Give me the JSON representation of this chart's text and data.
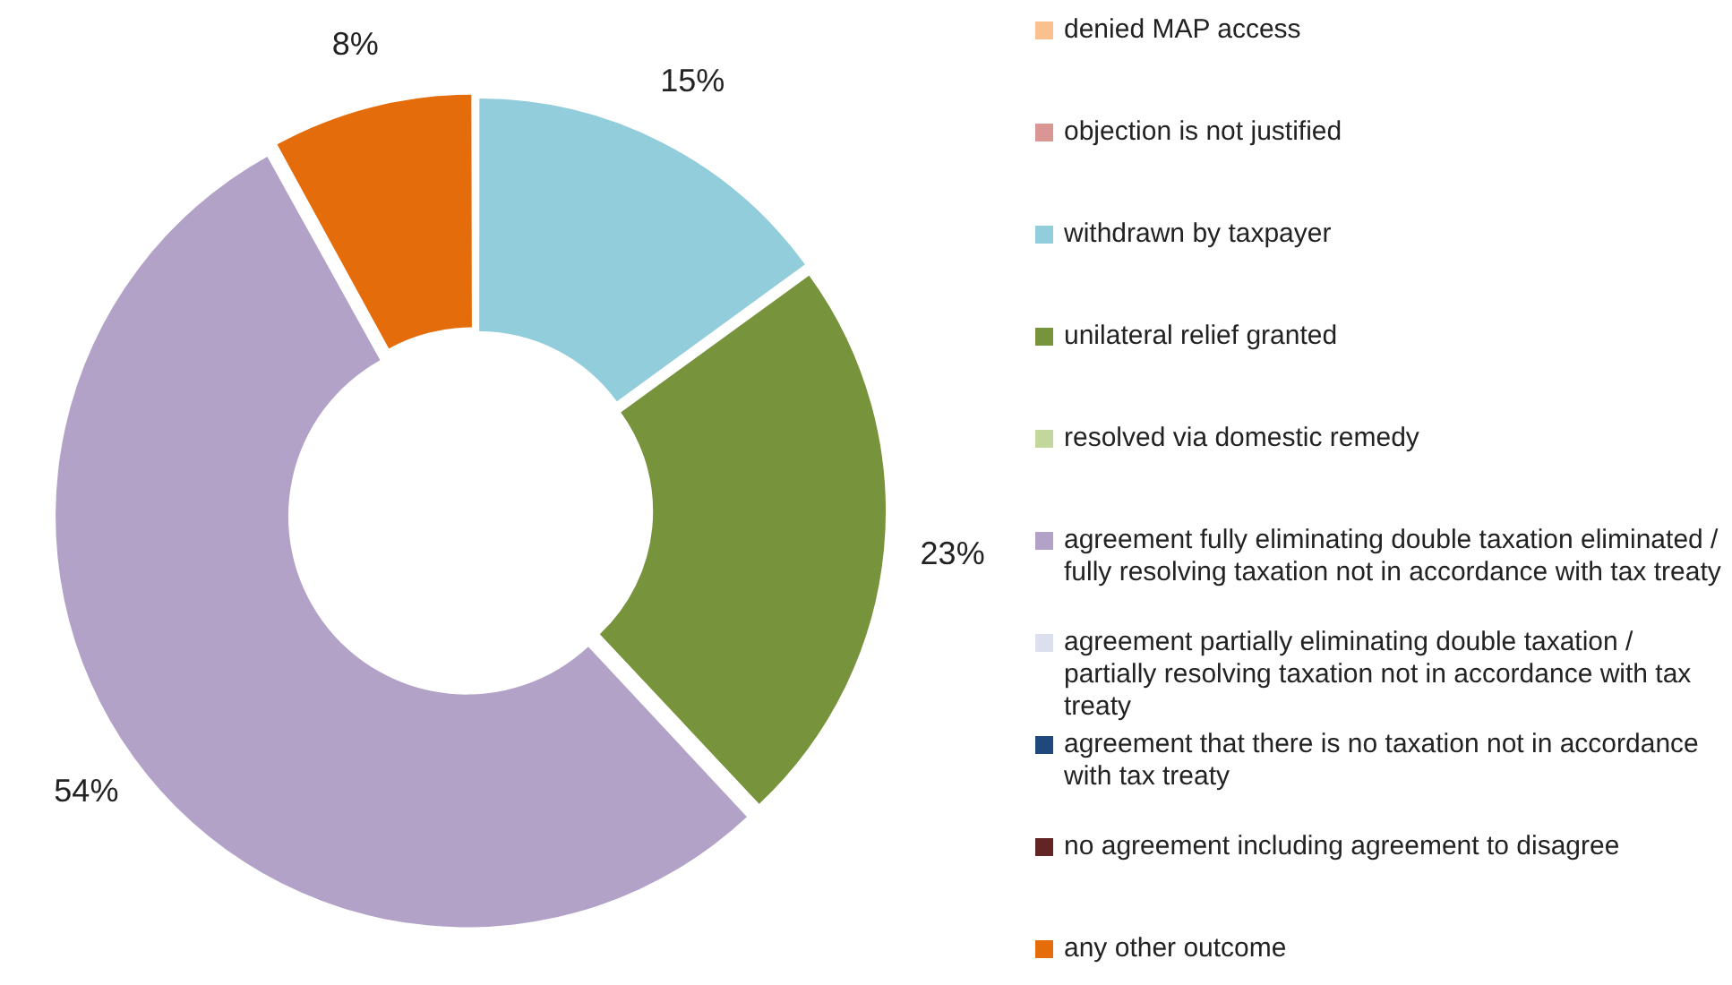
{
  "chart_data": {
    "type": "donut",
    "categories": [
      "denied MAP access",
      "objection is not justified",
      "withdrawn by taxpayer",
      "unilateral relief granted",
      "resolved via domestic remedy",
      "agreement fully eliminating double taxation eliminated / fully resolving taxation not in accordance with tax treaty",
      "agreement partially eliminating double taxation / partially resolving taxation not in accordance with tax treaty",
      "agreement that there is no taxation not in accordance with tax treaty",
      "no agreement including agreement to disagree",
      "any other outcome"
    ],
    "values": [
      0,
      0,
      15,
      23,
      0,
      54,
      0,
      0,
      0,
      8
    ],
    "value_labels": [
      null,
      null,
      "15%",
      "23%",
      null,
      "54%",
      null,
      null,
      null,
      "8%"
    ],
    "colors": [
      "#fac090",
      "#d99694",
      "#92cddc",
      "#77933c",
      "#c3d69b",
      "#b3a2c7",
      "#dcdfee",
      "#1f497d",
      "#632523",
      "#e46c0a"
    ],
    "legend": "right"
  }
}
